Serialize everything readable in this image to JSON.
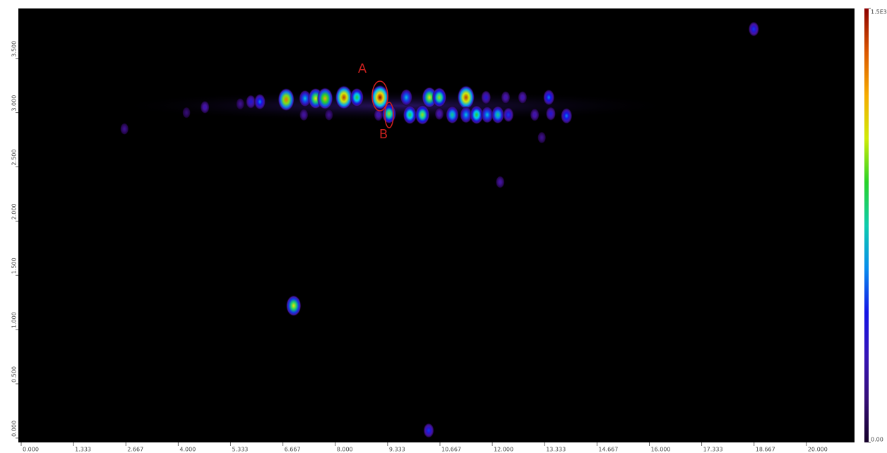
{
  "chart_data": {
    "type": "contour",
    "x": [
      4.68,
      5.58,
      5.85,
      6.08,
      6.75,
      7.23,
      7.5,
      7.74,
      8.22,
      8.55,
      9.14,
      9.81,
      10.4,
      10.65,
      11.33,
      11.84,
      12.34,
      12.77,
      13.44,
      7.2,
      7.84,
      9.1,
      9.37,
      9.9,
      10.22,
      10.65,
      10.98,
      11.33,
      11.6,
      11.87,
      12.14,
      12.41,
      13.08,
      13.49,
      13.89,
      2.63,
      4.21,
      18.66,
      12.2,
      13.26,
      6.94,
      10.38
    ],
    "y": [
      3.05,
      3.08,
      3.1,
      3.1,
      3.12,
      3.13,
      3.13,
      3.13,
      3.14,
      3.14,
      3.14,
      3.14,
      3.14,
      3.14,
      3.14,
      3.14,
      3.14,
      3.14,
      3.14,
      2.98,
      2.98,
      2.98,
      2.99,
      2.98,
      2.98,
      2.99,
      2.98,
      2.98,
      2.98,
      2.98,
      2.98,
      2.98,
      2.98,
      2.99,
      2.97,
      2.85,
      3.0,
      3.77,
      2.36,
      2.77,
      1.22,
      0.07
    ],
    "values": [
      300,
      200,
      400,
      600,
      1300,
      700,
      1100,
      1200,
      1400,
      900,
      1500,
      700,
      1100,
      1000,
      1400,
      400,
      300,
      300,
      600,
      250,
      200,
      300,
      1000,
      900,
      1000,
      300,
      800,
      700,
      900,
      700,
      800,
      500,
      300,
      400,
      600,
      200,
      150,
      500,
      250,
      200,
      1100,
      500
    ],
    "xlim": [
      0,
      21.1
    ],
    "ylim": [
      -0.04,
      3.96
    ],
    "xticks": [
      {
        "value": 0,
        "label": "0.000"
      },
      {
        "value": 1.333,
        "label": "1.333"
      },
      {
        "value": 2.667,
        "label": "2.667"
      },
      {
        "value": 4,
        "label": "4.000"
      },
      {
        "value": 5.333,
        "label": "5.333"
      },
      {
        "value": 6.667,
        "label": "6.667"
      },
      {
        "value": 8,
        "label": "8.000"
      },
      {
        "value": 9.333,
        "label": "9.333"
      },
      {
        "value": 10.667,
        "label": "10.667"
      },
      {
        "value": 12,
        "label": "12.000"
      },
      {
        "value": 13.333,
        "label": "13.333"
      },
      {
        "value": 14.667,
        "label": "14.667"
      },
      {
        "value": 16,
        "label": "16.000"
      },
      {
        "value": 17.333,
        "label": "17.333"
      },
      {
        "value": 18.667,
        "label": "18.667"
      },
      {
        "value": 20,
        "label": "20.000"
      }
    ],
    "yticks": [
      {
        "value": 0,
        "label": "0.000"
      },
      {
        "value": 0.5,
        "label": "0.500"
      },
      {
        "value": 1,
        "label": "1.000"
      },
      {
        "value": 1.5,
        "label": "1.500"
      },
      {
        "value": 2,
        "label": "2.000"
      },
      {
        "value": 2.5,
        "label": "2.500"
      },
      {
        "value": 3,
        "label": "3.000"
      },
      {
        "value": 3.5,
        "label": "3.500"
      }
    ],
    "clim": [
      0,
      1500
    ],
    "colorbar_ticks": [
      {
        "value": 1500,
        "label": "1.5E3"
      },
      {
        "value": 0,
        "label": "0.00"
      }
    ],
    "annotations": [
      "A",
      "B"
    ]
  }
}
